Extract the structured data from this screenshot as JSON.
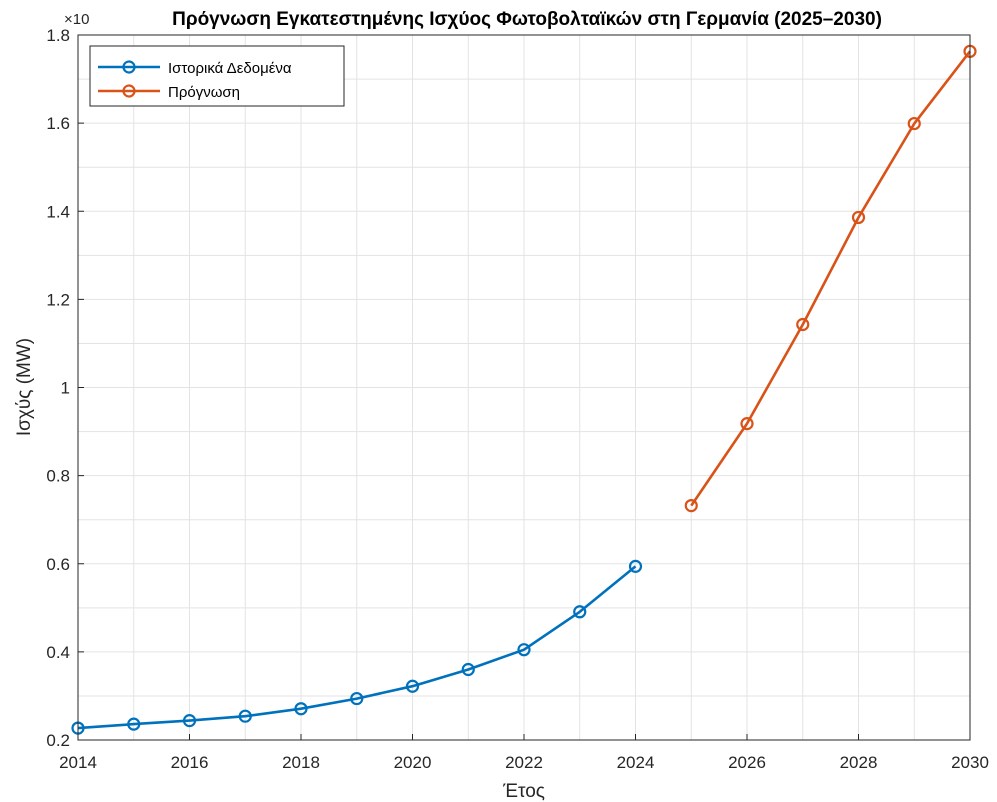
{
  "chart_data": {
    "type": "line",
    "title": "Πρόγνωση Εγκατεστημένης Ισχύος Φωτοβολταϊκών στη Γερμανία (2025–2030)",
    "xlabel": "Έτος",
    "ylabel": "Ισχύς (MW)",
    "y_exponent_label": "×10",
    "xlim": [
      2014,
      2030
    ],
    "ylim": [
      0.2,
      1.8
    ],
    "y_scale_factor": "×10^5",
    "grid": true,
    "legend_position": "top-left",
    "x_ticks": [
      "2014",
      "2016",
      "2018",
      "2020",
      "2022",
      "2024",
      "2026",
      "2028",
      "2030"
    ],
    "y_ticks": [
      "0.2",
      "0.4",
      "0.6",
      "0.8",
      "1",
      "1.2",
      "1.4",
      "1.6",
      "1.8"
    ],
    "series": [
      {
        "name": "Ιστορικά Δεδομένα",
        "color": "#0072BD",
        "x": [
          2014,
          2015,
          2016,
          2017,
          2018,
          2019,
          2020,
          2021,
          2022,
          2023,
          2024
        ],
        "y": [
          0.227,
          0.236,
          0.244,
          0.254,
          0.271,
          0.294,
          0.322,
          0.36,
          0.405,
          0.491,
          0.594
        ]
      },
      {
        "name": "Πρόγνωση",
        "color": "#D95319",
        "x": [
          2025,
          2026,
          2027,
          2028,
          2029,
          2030
        ],
        "y": [
          0.732,
          0.918,
          1.143,
          1.386,
          1.599,
          1.763
        ]
      }
    ]
  }
}
